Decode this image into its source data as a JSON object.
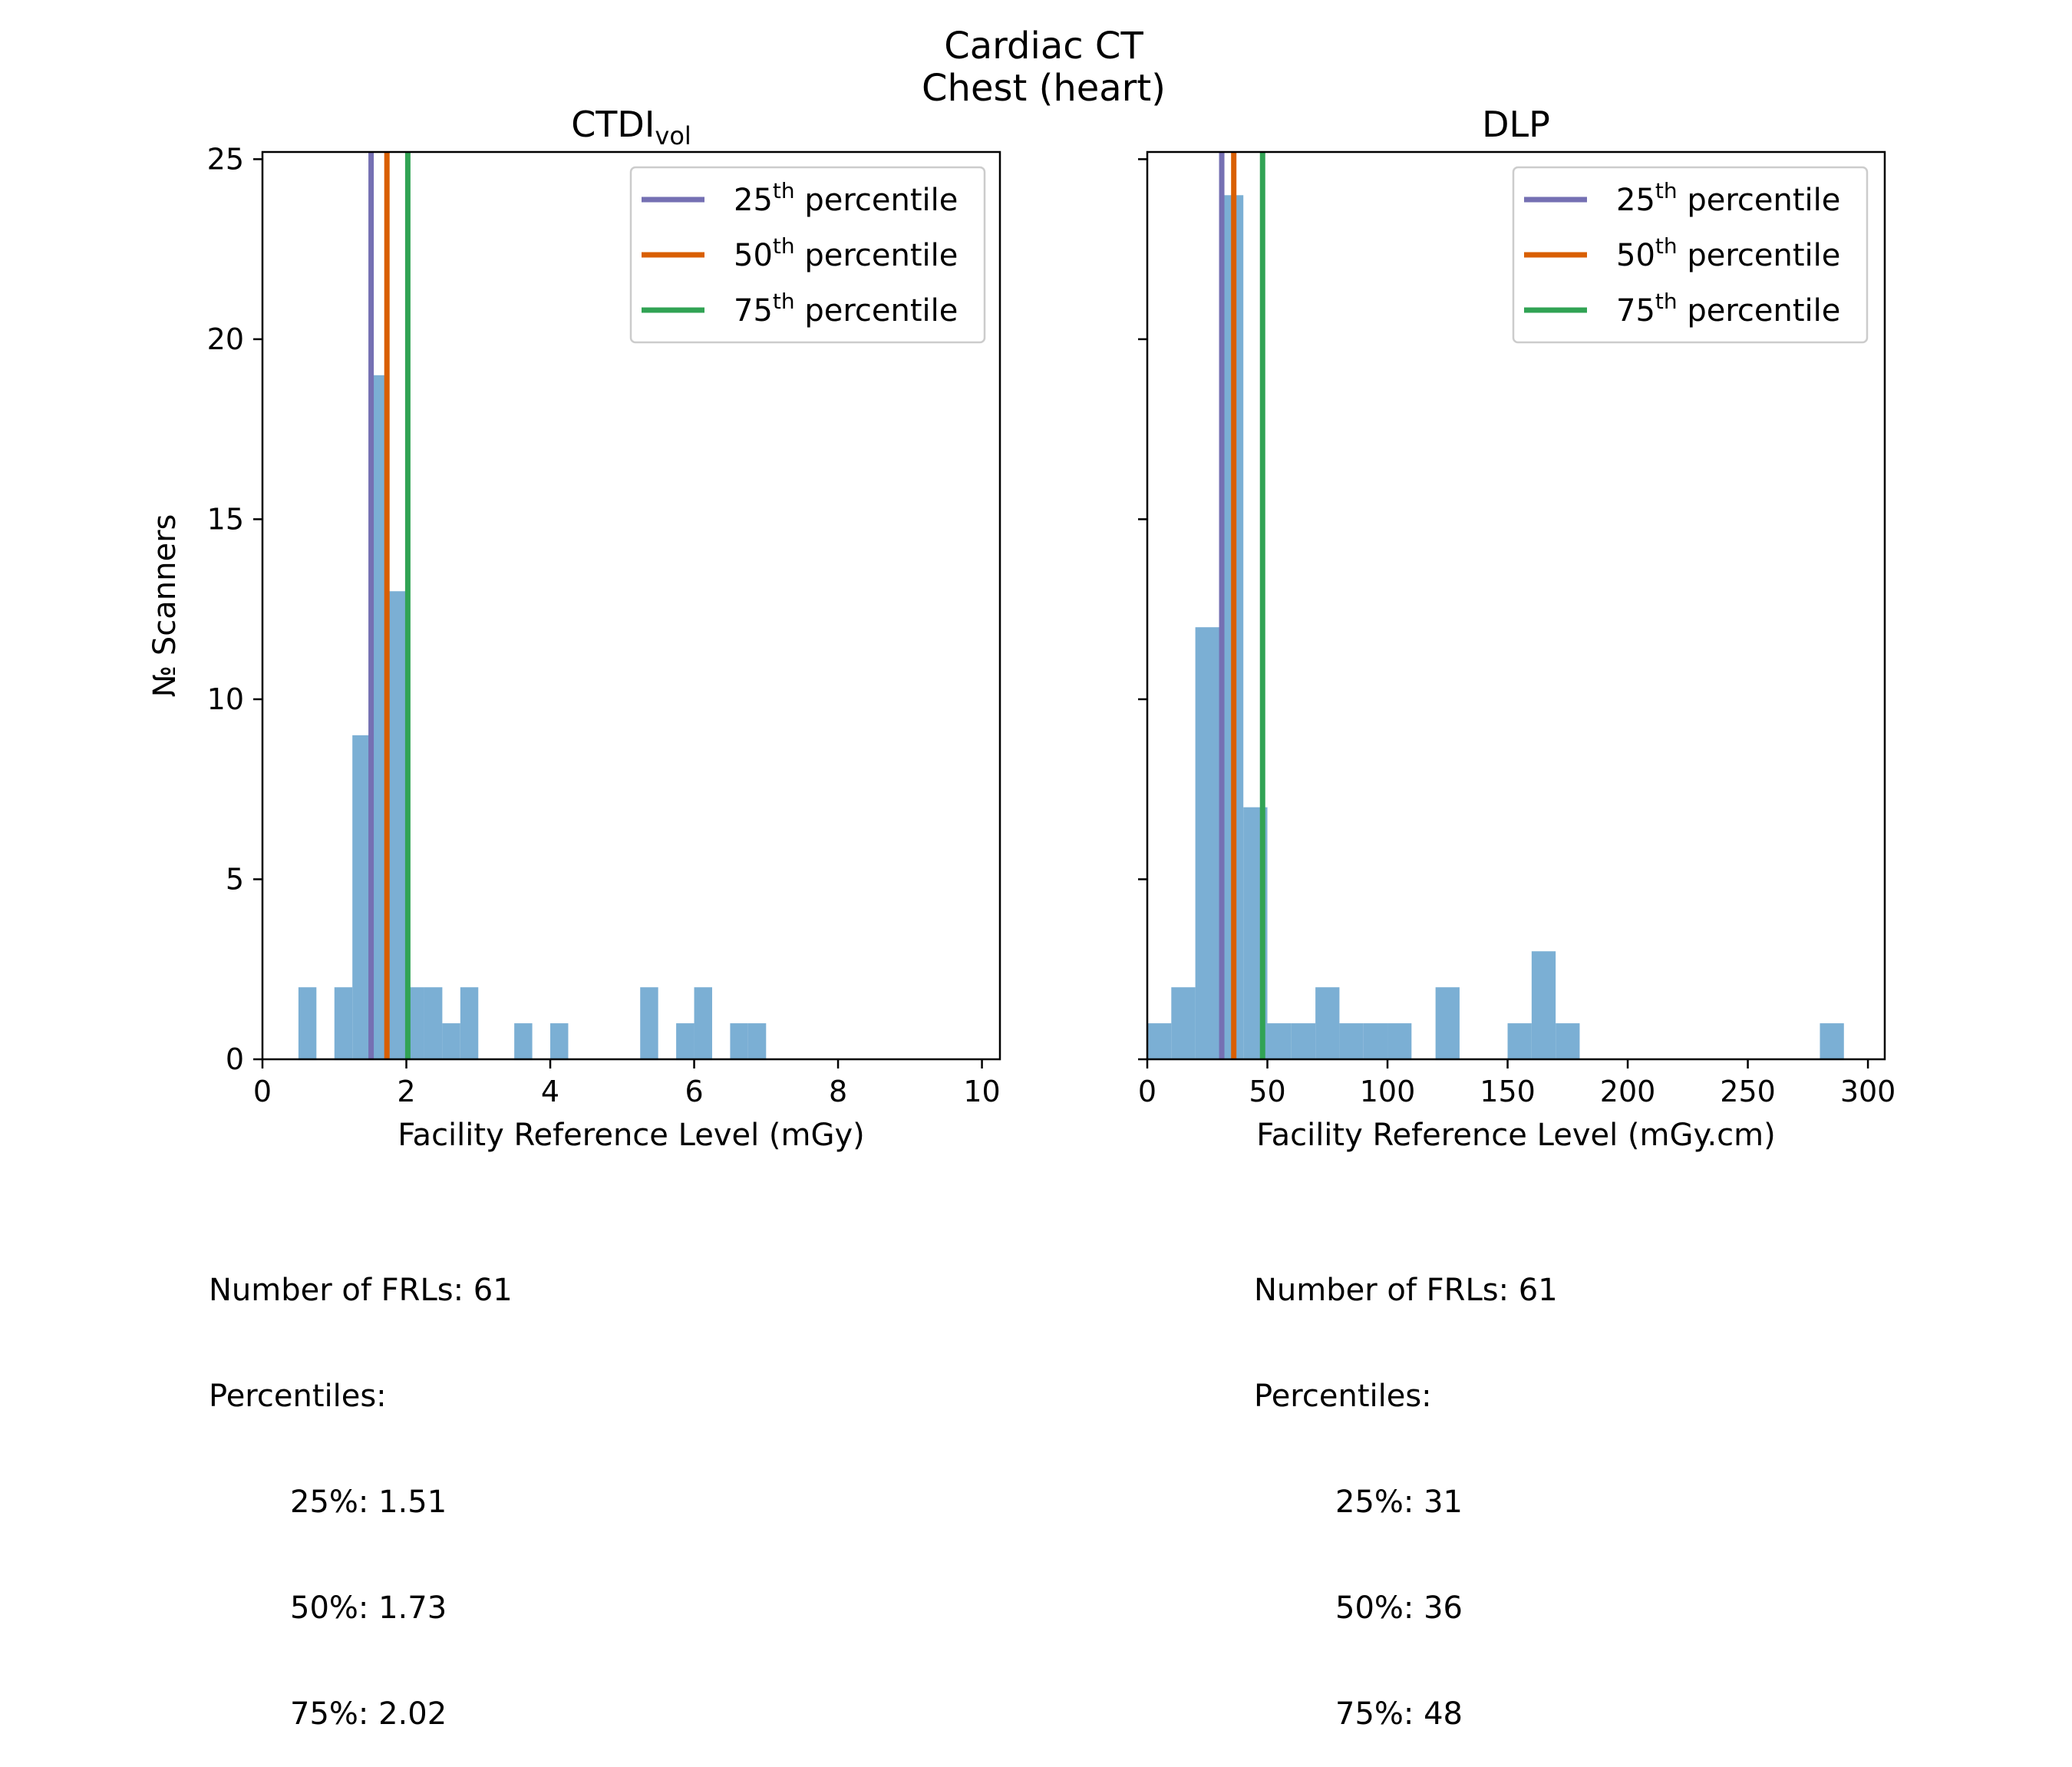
{
  "suptitle": [
    "Cardiac CT",
    "Chest (heart)"
  ],
  "chart_data": [
    {
      "type": "bar",
      "title": "CTDI",
      "title_sub": "vol",
      "xlabel": "Facility Reference Level (mGy)",
      "ylabel": "№ Scanners",
      "xlim": [
        0,
        10.25
      ],
      "ylim": [
        0,
        25.2
      ],
      "xticks": [
        0,
        2,
        4,
        6,
        8,
        10
      ],
      "yticks": [
        0,
        5,
        10,
        15,
        20,
        25
      ],
      "bin_width": 0.25,
      "bins": [
        {
          "x": 0.5,
          "count": 2
        },
        {
          "x": 1.0,
          "count": 2
        },
        {
          "x": 1.25,
          "count": 9
        },
        {
          "x": 1.5,
          "count": 19
        },
        {
          "x": 1.75,
          "count": 13
        },
        {
          "x": 2.0,
          "count": 2
        },
        {
          "x": 2.25,
          "count": 2
        },
        {
          "x": 2.5,
          "count": 1
        },
        {
          "x": 2.75,
          "count": 2
        },
        {
          "x": 3.5,
          "count": 1
        },
        {
          "x": 4.0,
          "count": 1
        },
        {
          "x": 5.25,
          "count": 2
        },
        {
          "x": 5.75,
          "count": 1
        },
        {
          "x": 6.0,
          "count": 2
        },
        {
          "x": 6.5,
          "count": 1
        },
        {
          "x": 6.75,
          "count": 1
        }
      ],
      "percentile_lines": [
        {
          "label": "25",
          "value": 1.51,
          "color": "#7570b3"
        },
        {
          "label": "50",
          "value": 1.73,
          "color": "#d95f02"
        },
        {
          "label": "75",
          "value": 2.02,
          "color": "#31a354"
        }
      ],
      "legend_suffix": "th",
      "legend_word": "percentile",
      "legend_position": "top-right",
      "bar_color": "#7bafd4",
      "stats": {
        "count_line": "Number of FRLs: 61",
        "heading": "Percentiles:",
        "lines": [
          "25%: 1.51",
          "50%: 1.73",
          "75%: 2.02"
        ]
      }
    },
    {
      "type": "bar",
      "title": "DLP",
      "title_sub": "",
      "xlabel": "Facility Reference Level (mGy.cm)",
      "ylabel": "",
      "xlim": [
        0,
        307
      ],
      "ylim": [
        0,
        25.2
      ],
      "xticks": [
        0,
        50,
        100,
        150,
        200,
        250,
        300
      ],
      "yticks": [
        0,
        5,
        10,
        15,
        20,
        25
      ],
      "bin_width": 10,
      "bins": [
        {
          "x": 0,
          "count": 1
        },
        {
          "x": 10,
          "count": 2
        },
        {
          "x": 20,
          "count": 12
        },
        {
          "x": 30,
          "count": 24
        },
        {
          "x": 40,
          "count": 7
        },
        {
          "x": 50,
          "count": 1
        },
        {
          "x": 60,
          "count": 1
        },
        {
          "x": 70,
          "count": 2
        },
        {
          "x": 80,
          "count": 1
        },
        {
          "x": 90,
          "count": 1
        },
        {
          "x": 100,
          "count": 1
        },
        {
          "x": 120,
          "count": 2
        },
        {
          "x": 150,
          "count": 1
        },
        {
          "x": 160,
          "count": 3
        },
        {
          "x": 170,
          "count": 1
        },
        {
          "x": 280,
          "count": 1
        }
      ],
      "percentile_lines": [
        {
          "label": "25",
          "value": 31,
          "color": "#7570b3"
        },
        {
          "label": "50",
          "value": 36,
          "color": "#d95f02"
        },
        {
          "label": "75",
          "value": 48,
          "color": "#31a354"
        }
      ],
      "legend_suffix": "th",
      "legend_word": "percentile",
      "legend_position": "top-right",
      "bar_color": "#7bafd4",
      "stats": {
        "count_line": "Number of FRLs: 61",
        "heading": "Percentiles:",
        "lines": [
          "25%: 31",
          "50%: 36",
          "75%: 48"
        ]
      }
    }
  ]
}
